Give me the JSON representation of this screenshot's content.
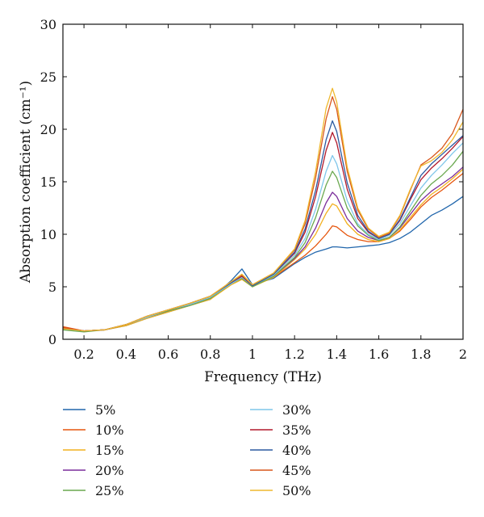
{
  "chart_data": {
    "type": "line",
    "xlabel": "Frequency (THz)",
    "ylabel": "Absorption coefficient (cm⁻¹)",
    "xlim": [
      0.1,
      2.0
    ],
    "ylim": [
      0,
      30
    ],
    "x_ticks": [
      "0.2",
      "0.4",
      "0.6",
      "0.8",
      "1",
      "1.2",
      "1.4",
      "1.6",
      "1.8",
      "2"
    ],
    "y_ticks": [
      "0",
      "5",
      "10",
      "15",
      "20",
      "25",
      "30"
    ],
    "grid": false,
    "legend": "bottom, two columns",
    "x": [
      0.1,
      0.2,
      0.3,
      0.4,
      0.5,
      0.6,
      0.7,
      0.8,
      0.9,
      0.95,
      1.0,
      1.1,
      1.2,
      1.25,
      1.3,
      1.35,
      1.38,
      1.4,
      1.45,
      1.5,
      1.55,
      1.6,
      1.65,
      1.7,
      1.75,
      1.8,
      1.85,
      1.9,
      1.95,
      2.0
    ],
    "series": [
      {
        "name": "5%",
        "color": "#2166ac",
        "values": [
          1.0,
          0.8,
          0.9,
          1.3,
          2.0,
          2.6,
          3.2,
          3.8,
          5.6,
          6.7,
          5.2,
          5.8,
          7.2,
          7.8,
          8.3,
          8.6,
          8.8,
          8.8,
          8.7,
          8.8,
          8.9,
          9.0,
          9.2,
          9.6,
          10.2,
          11.0,
          11.8,
          12.3,
          12.9,
          13.6
        ]
      },
      {
        "name": "10%",
        "color": "#e6550d",
        "values": [
          1.2,
          0.8,
          0.9,
          1.4,
          2.1,
          2.7,
          3.3,
          3.9,
          5.3,
          5.8,
          5.2,
          5.9,
          7.3,
          8.0,
          8.9,
          10.0,
          10.8,
          10.7,
          9.9,
          9.5,
          9.3,
          9.3,
          9.6,
          10.3,
          11.4,
          12.6,
          13.5,
          14.2,
          15.0,
          15.8
        ]
      },
      {
        "name": "15%",
        "color": "#f2b01e",
        "values": [
          1.0,
          0.8,
          0.9,
          1.3,
          2.0,
          2.6,
          3.2,
          3.8,
          5.2,
          5.7,
          5.0,
          5.9,
          7.6,
          8.6,
          10.0,
          12.0,
          12.9,
          12.7,
          11.0,
          10.0,
          9.5,
          9.3,
          9.6,
          10.4,
          11.6,
          12.8,
          13.8,
          14.5,
          15.3,
          16.2
        ]
      },
      {
        "name": "20%",
        "color": "#7b2d9b",
        "values": [
          1.1,
          0.8,
          0.9,
          1.4,
          2.1,
          2.7,
          3.3,
          3.9,
          5.4,
          5.9,
          5.1,
          6.0,
          7.7,
          8.8,
          10.6,
          13.0,
          14.0,
          13.6,
          11.5,
          10.3,
          9.7,
          9.4,
          9.7,
          10.6,
          11.9,
          13.2,
          14.1,
          14.8,
          15.5,
          16.4
        ]
      },
      {
        "name": "25%",
        "color": "#6aa84f",
        "values": [
          0.9,
          0.7,
          0.9,
          1.4,
          2.1,
          2.7,
          3.2,
          3.9,
          5.3,
          5.8,
          5.0,
          6.0,
          7.8,
          9.2,
          11.6,
          14.7,
          16.0,
          15.4,
          12.5,
          10.8,
          9.9,
          9.4,
          9.7,
          10.7,
          12.2,
          13.7,
          14.8,
          15.6,
          16.6,
          17.9
        ]
      },
      {
        "name": "30%",
        "color": "#7fc6ea",
        "values": [
          1.0,
          0.8,
          0.9,
          1.4,
          2.1,
          2.8,
          3.3,
          4.0,
          5.3,
          5.9,
          5.1,
          6.1,
          8.0,
          9.6,
          12.4,
          16.0,
          17.5,
          16.7,
          13.2,
          11.0,
          10.0,
          9.5,
          9.9,
          11.0,
          12.7,
          14.4,
          15.6,
          16.6,
          17.7,
          18.7
        ]
      },
      {
        "name": "35%",
        "color": "#b2182b",
        "values": [
          1.1,
          0.8,
          0.9,
          1.4,
          2.2,
          2.8,
          3.4,
          4.1,
          5.4,
          6.0,
          5.1,
          6.2,
          8.2,
          10.2,
          13.6,
          18.0,
          19.7,
          18.7,
          14.3,
          11.5,
          10.2,
          9.6,
          10.0,
          11.3,
          13.3,
          15.2,
          16.3,
          17.2,
          18.2,
          19.3
        ]
      },
      {
        "name": "40%",
        "color": "#2c5aa0",
        "values": [
          1.0,
          0.8,
          0.9,
          1.4,
          2.2,
          2.8,
          3.4,
          4.1,
          5.4,
          6.1,
          5.1,
          6.2,
          8.3,
          10.5,
          14.2,
          19.0,
          20.8,
          19.8,
          14.9,
          11.8,
          10.3,
          9.6,
          10.0,
          11.4,
          13.5,
          15.6,
          16.7,
          17.6,
          18.5,
          19.4
        ]
      },
      {
        "name": "45%",
        "color": "#d9571c",
        "values": [
          1.1,
          0.8,
          0.9,
          1.4,
          2.2,
          2.8,
          3.4,
          4.1,
          5.5,
          6.1,
          5.2,
          6.3,
          8.5,
          11.0,
          15.4,
          21.0,
          23.1,
          21.9,
          16.0,
          12.3,
          10.5,
          9.7,
          10.1,
          11.7,
          14.2,
          16.6,
          17.3,
          18.2,
          19.6,
          21.9
        ]
      },
      {
        "name": "50%",
        "color": "#efb82e",
        "values": [
          1.0,
          0.8,
          0.9,
          1.4,
          2.2,
          2.8,
          3.4,
          4.1,
          5.5,
          6.2,
          5.2,
          6.3,
          8.6,
          11.3,
          16.0,
          22.0,
          23.9,
          22.6,
          16.4,
          12.5,
          10.6,
          9.8,
          10.2,
          11.8,
          14.3,
          16.5,
          17.0,
          17.8,
          19.0,
          20.7
        ]
      }
    ]
  }
}
